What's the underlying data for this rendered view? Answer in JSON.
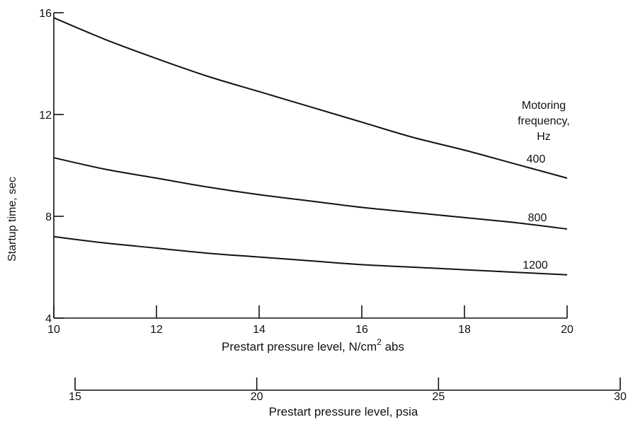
{
  "chart_data": {
    "type": "line",
    "xlabel": "Prestart pressure level, N/cm",
    "xlabel_superscript": "2",
    "xlabel_suffix": " abs",
    "ylabel": "Startup time, sec",
    "xlim": [
      10,
      20
    ],
    "ylim": [
      4,
      16
    ],
    "x_ticks": [
      10,
      12,
      14,
      16,
      18,
      20
    ],
    "y_ticks": [
      4,
      8,
      12,
      16
    ],
    "grid": false,
    "legend_title": [
      "Motoring",
      "frequency,",
      "Hz"
    ],
    "series": [
      {
        "name": "400",
        "x": [
          10,
          11,
          12,
          13,
          14,
          15,
          16,
          17,
          18,
          19,
          20
        ],
        "y": [
          15.8,
          14.95,
          14.2,
          13.5,
          12.9,
          12.3,
          11.7,
          11.1,
          10.6,
          10.05,
          9.5
        ]
      },
      {
        "name": "800",
        "x": [
          10,
          11,
          12,
          13,
          14,
          15,
          16,
          17,
          18,
          19,
          20
        ],
        "y": [
          10.3,
          9.85,
          9.5,
          9.15,
          8.85,
          8.6,
          8.35,
          8.15,
          7.95,
          7.75,
          7.5
        ]
      },
      {
        "name": "1200",
        "x": [
          10,
          11,
          12,
          13,
          14,
          15,
          16,
          17,
          18,
          19,
          20
        ],
        "y": [
          7.2,
          6.95,
          6.75,
          6.55,
          6.4,
          6.25,
          6.1,
          6.0,
          5.9,
          5.8,
          5.7
        ]
      }
    ],
    "secondary_x_axis": {
      "label": "Prestart pressure level, psia",
      "ticks": [
        15,
        20,
        25,
        30
      ],
      "range": [
        15,
        30
      ]
    }
  }
}
